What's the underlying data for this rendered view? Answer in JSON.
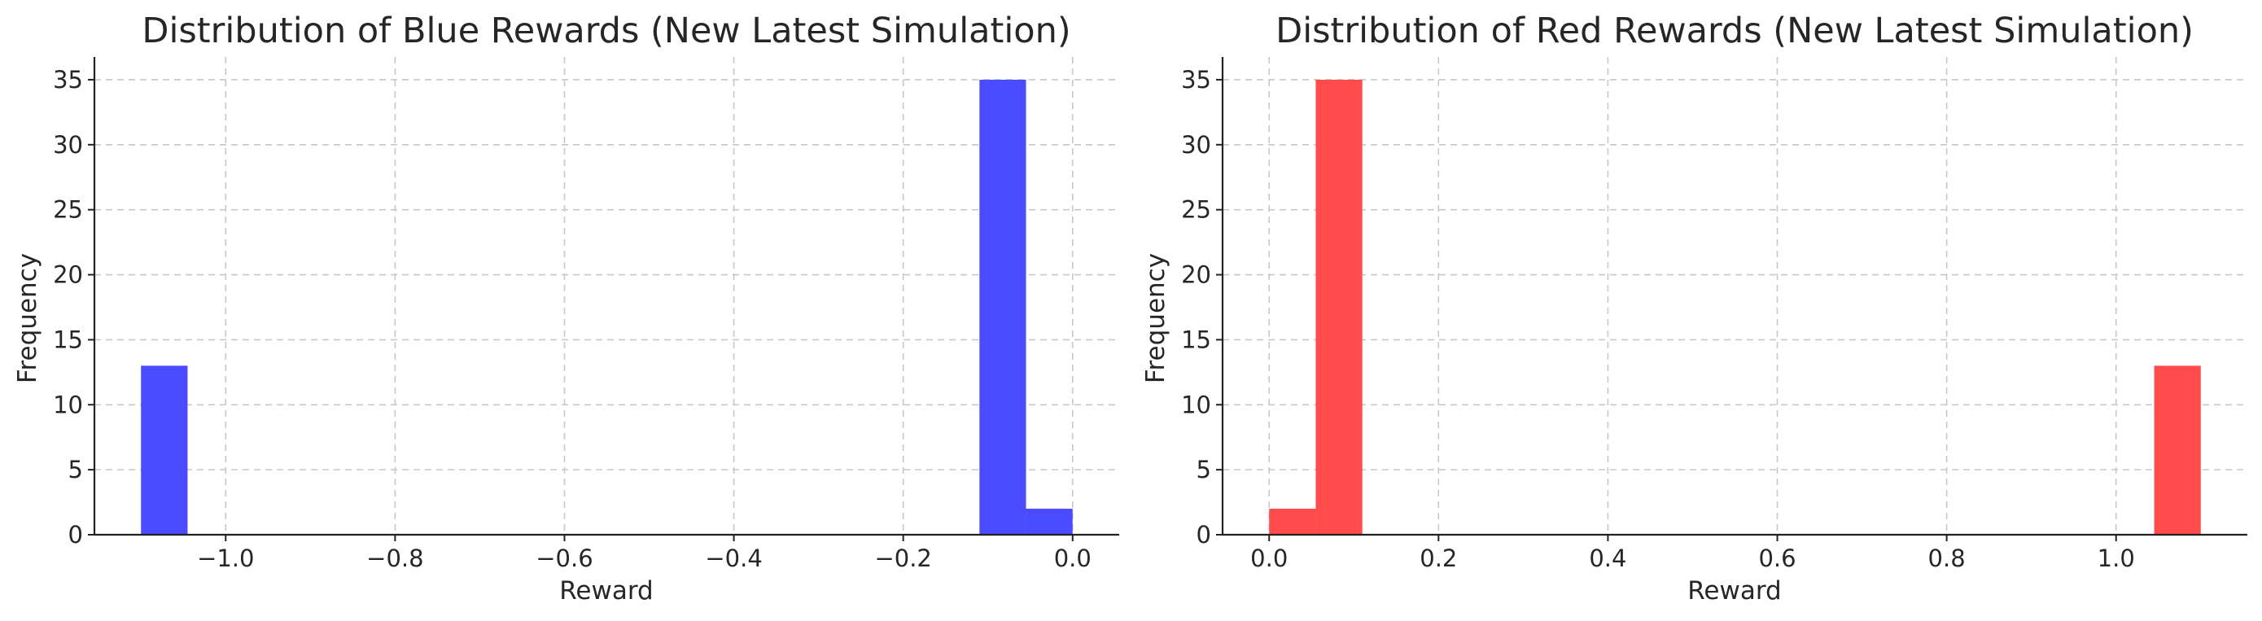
{
  "chart_data": [
    {
      "type": "bar",
      "title": "Distribution of Blue Rewards (New Latest Simulation)",
      "xlabel": "Reward",
      "ylabel": "Frequency",
      "color": "#4b4bff",
      "xlim": [
        -1.155,
        0.055
      ],
      "ylim": [
        0,
        36.75
      ],
      "xticks": [
        "−1.0",
        "−0.8",
        "−0.6",
        "−0.4",
        "−0.2",
        "0.0"
      ],
      "xtick_values": [
        -1.0,
        -0.8,
        -0.6,
        -0.4,
        -0.2,
        0.0
      ],
      "yticks": [
        "0",
        "5",
        "10",
        "15",
        "20",
        "25",
        "30",
        "35"
      ],
      "ytick_values": [
        0,
        5,
        10,
        15,
        20,
        25,
        30,
        35
      ],
      "grid": true,
      "bins": [
        {
          "x0": -1.1,
          "x1": -1.045,
          "value": 13
        },
        {
          "x0": -0.11,
          "x1": -0.055,
          "value": 35
        },
        {
          "x0": -0.055,
          "x1": 0.0,
          "value": 2
        }
      ]
    },
    {
      "type": "bar",
      "title": "Distribution of Red Rewards (New Latest Simulation)",
      "xlabel": "Reward",
      "ylabel": "Frequency",
      "color": "#ff4b4b",
      "xlim": [
        -0.055,
        1.155
      ],
      "ylim": [
        0,
        36.75
      ],
      "xticks": [
        "0.0",
        "0.2",
        "0.4",
        "0.6",
        "0.8",
        "1.0"
      ],
      "xtick_values": [
        0.0,
        0.2,
        0.4,
        0.6,
        0.8,
        1.0
      ],
      "yticks": [
        "0",
        "5",
        "10",
        "15",
        "20",
        "25",
        "30",
        "35"
      ],
      "ytick_values": [
        0,
        5,
        10,
        15,
        20,
        25,
        30,
        35
      ],
      "grid": true,
      "bins": [
        {
          "x0": 0.0,
          "x1": 0.055,
          "value": 2
        },
        {
          "x0": 0.055,
          "x1": 0.11,
          "value": 35
        },
        {
          "x0": 1.045,
          "x1": 1.1,
          "value": 13
        }
      ]
    }
  ]
}
